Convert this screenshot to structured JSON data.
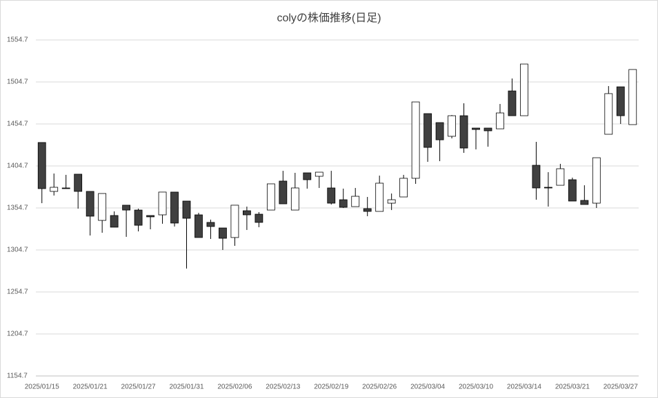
{
  "chart_data": {
    "type": "candlestick",
    "title": "colyの株価推移(日足)",
    "categories": [
      "2025/01/15",
      null,
      null,
      null,
      "2025/01/21",
      null,
      null,
      null,
      "2025/01/27",
      null,
      null,
      null,
      "2025/01/31",
      null,
      null,
      null,
      "2025/02/06",
      null,
      null,
      null,
      "2025/02/13",
      null,
      null,
      null,
      "2025/02/19",
      null,
      null,
      null,
      "2025/02/26",
      null,
      null,
      null,
      "2025/03/04",
      null,
      null,
      null,
      "2025/03/10",
      null,
      null,
      null,
      "2025/03/14",
      null,
      null,
      null,
      "2025/03/21",
      null,
      null,
      null,
      "2025/03/27",
      null
    ],
    "open": [
      1432.6,
      1374.4,
      1378.5,
      1394.9,
      1374.4,
      1339.9,
      1345.7,
      1358.0,
      1352.2,
      1345.7,
      1346.5,
      1373.6,
      1362.9,
      1346.5,
      1337.5,
      1330.9,
      1319.5,
      1351.4,
      1347.3,
      1352.2,
      1386.7,
      1352.2,
      1396.5,
      1392.4,
      1378.5,
      1364.5,
      1356.3,
      1353.9,
      1350.6,
      1360.4,
      1367.8,
      1390.0,
      1467.0,
      1456.3,
      1440.0,
      1464.5,
      1449.8,
      1449.8,
      1448.9,
      1494.0,
      1464.5,
      1405.5,
      1379.3,
      1381.7,
      1388.3,
      1363.7,
      1360.4,
      1442.4,
      1498.9,
      1453.9
    ],
    "high": [
      1432.6,
      1395.7,
      1394.1,
      1394.9,
      1374.4,
      1371.9,
      1350.6,
      1358.0,
      1353.9,
      1345.7,
      1373.6,
      1373.6,
      1362.9,
      1348.9,
      1340.8,
      1330.9,
      1358.0,
      1356.3,
      1349.8,
      1383.4,
      1398.9,
      1396.5,
      1396.5,
      1397.3,
      1398.9,
      1377.7,
      1378.5,
      1367.8,
      1393.2,
      1371.9,
      1394.1,
      1480.9,
      1467.0,
      1456.3,
      1465.3,
      1479.3,
      1449.8,
      1449.8,
      1478.5,
      1508.8,
      1526.0,
      1433.4,
      1397.3,
      1407.2,
      1390.8,
      1381.7,
      1414.5,
      1499.8,
      1498.9,
      1519.5
    ],
    "low": [
      1360.4,
      1369.5,
      1377.7,
      1353.9,
      1321.9,
      1325.2,
      1331.8,
      1320.3,
      1326.8,
      1329.3,
      1335.9,
      1332.6,
      1282.6,
      1319.5,
      1317.8,
      1304.7,
      1309.6,
      1328.5,
      1331.8,
      1352.2,
      1359.6,
      1352.2,
      1377.7,
      1378.5,
      1358.8,
      1354.7,
      1356.3,
      1344.9,
      1350.6,
      1352.2,
      1367.8,
      1383.4,
      1409.6,
      1410.4,
      1437.5,
      1420.3,
      1424.4,
      1427.6,
      1448.9,
      1464.5,
      1464.5,
      1364.5,
      1356.3,
      1381.7,
      1362.9,
      1358.8,
      1354.7,
      1442.4,
      1454.7,
      1453.9
    ],
    "close": [
      1377.7,
      1379.3,
      1377.7,
      1374.4,
      1344.9,
      1371.9,
      1331.8,
      1352.2,
      1334.1,
      1344.1,
      1373.6,
      1336.7,
      1342.4,
      1319.5,
      1332.6,
      1318.6,
      1358.0,
      1346.5,
      1337.5,
      1383.4,
      1359.6,
      1378.5,
      1388.3,
      1397.3,
      1360.4,
      1355.5,
      1368.6,
      1350.6,
      1384.2,
      1364.5,
      1390.0,
      1480.9,
      1426.8,
      1435.8,
      1464.5,
      1426.0,
      1448.1,
      1446.5,
      1467.8,
      1464.5,
      1526.0,
      1378.5,
      1378.5,
      1401.4,
      1362.9,
      1358.8,
      1414.5,
      1490.8,
      1464.5,
      1519.5
    ],
    "up_color": "#ffffff",
    "down_color": "#404040",
    "edge_color": "#000000",
    "ylim": [
      1154.7,
      1554.7
    ],
    "yticks": [
      1154.7,
      1204.7,
      1254.7,
      1304.7,
      1354.7,
      1404.7,
      1454.7,
      1504.7,
      1554.7
    ],
    "grid": true
  }
}
